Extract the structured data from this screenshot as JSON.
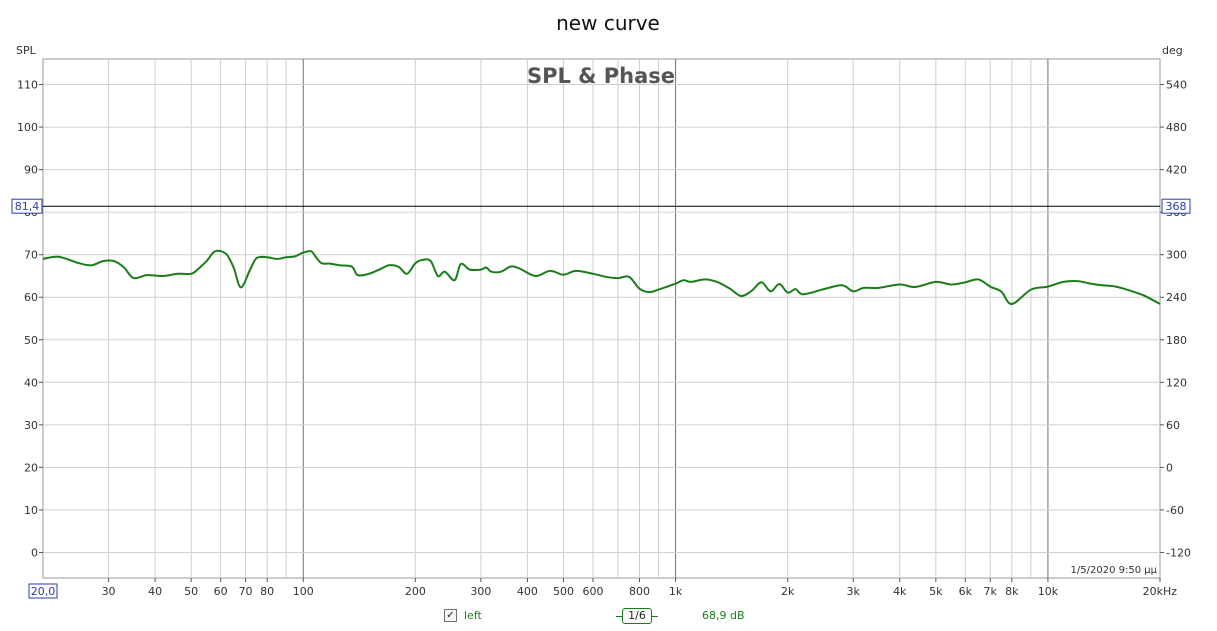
{
  "window_title": "new curve",
  "chart_data": {
    "type": "line",
    "title": "SPL & Phase",
    "left_axis_label": "SPL",
    "right_axis_label": "deg",
    "x_scale": "log",
    "xlim": [
      20,
      20000
    ],
    "ylim": [
      -6,
      116
    ],
    "right_ylim": [
      -156,
      576
    ],
    "y_ticks": [
      0,
      10,
      20,
      30,
      40,
      50,
      60,
      70,
      80,
      90,
      100,
      110
    ],
    "right_ticks": [
      -120,
      -60,
      0,
      60,
      120,
      180,
      240,
      300,
      360,
      420,
      480,
      540
    ],
    "x_ticks": [
      {
        "v": 30,
        "label": "30"
      },
      {
        "v": 40,
        "label": "40"
      },
      {
        "v": 50,
        "label": "50"
      },
      {
        "v": 60,
        "label": "60"
      },
      {
        "v": 70,
        "label": "70"
      },
      {
        "v": 80,
        "label": "80"
      },
      {
        "v": 100,
        "label": "100"
      },
      {
        "v": 200,
        "label": "200"
      },
      {
        "v": 300,
        "label": "300"
      },
      {
        "v": 400,
        "label": "400"
      },
      {
        "v": 500,
        "label": "500"
      },
      {
        "v": 600,
        "label": "600"
      },
      {
        "v": 800,
        "label": "800"
      },
      {
        "v": 1000,
        "label": "1k"
      },
      {
        "v": 2000,
        "label": "2k"
      },
      {
        "v": 3000,
        "label": "3k"
      },
      {
        "v": 4000,
        "label": "4k"
      },
      {
        "v": 5000,
        "label": "5k"
      },
      {
        "v": 6000,
        "label": "6k"
      },
      {
        "v": 7000,
        "label": "7k"
      },
      {
        "v": 8000,
        "label": "8k"
      },
      {
        "v": 10000,
        "label": "10k"
      },
      {
        "v": 20000,
        "label": "20kHz"
      }
    ],
    "x_start_label": "20,0",
    "cursor": {
      "y": 81.4,
      "y_label": "81,4",
      "right_label": "368"
    },
    "timestamp": "1/5/2020 9:50 μμ",
    "grid": true,
    "series": [
      {
        "name": "left",
        "color": "#1a7d1a",
        "x": [
          20,
          22,
          25,
          27,
          29,
          31,
          33,
          35,
          38,
          42,
          46,
          50,
          52,
          55,
          58,
          62,
          65,
          68,
          72,
          75,
          80,
          85,
          90,
          95,
          100,
          105,
          108,
          112,
          118,
          125,
          135,
          140,
          150,
          160,
          170,
          180,
          190,
          200,
          210,
          220,
          230,
          240,
          255,
          265,
          280,
          300,
          310,
          320,
          340,
          360,
          380,
          420,
          460,
          500,
          540,
          600,
          650,
          700,
          750,
          800,
          850,
          900,
          1000,
          1050,
          1100,
          1200,
          1300,
          1400,
          1500,
          1600,
          1700,
          1800,
          1900,
          2000,
          2100,
          2200,
          2500,
          2800,
          3000,
          3200,
          3500,
          4000,
          4400,
          5000,
          5500,
          6000,
          6500,
          7000,
          7500,
          8000,
          9000,
          10000,
          11000,
          12000,
          13000,
          14000,
          15000,
          16000,
          18000,
          20000
        ],
        "y": [
          69,
          69.5,
          68,
          67.5,
          68.5,
          68.5,
          67,
          64.5,
          65.2,
          65,
          65.5,
          65.5,
          66.5,
          68.5,
          70.8,
          70.2,
          67,
          62.3,
          66.5,
          69.2,
          69.4,
          69,
          69.4,
          69.6,
          70.5,
          70.8,
          69.5,
          68,
          67.9,
          67.5,
          67.2,
          65.2,
          65.5,
          66.5,
          67.5,
          67.2,
          65.5,
          68,
          68.8,
          68.5,
          65,
          66,
          64,
          67.8,
          66.5,
          66.5,
          67,
          66,
          66,
          67.2,
          66.8,
          65,
          66.2,
          65.3,
          66.2,
          65.5,
          64.8,
          64.5,
          64.8,
          62,
          61.2,
          61.8,
          63.2,
          64,
          63.6,
          64.2,
          63.5,
          62,
          60.3,
          61.5,
          63.5,
          61.4,
          63.1,
          61.1,
          61.9,
          60.7,
          61.9,
          62.8,
          61.4,
          62.2,
          62.2,
          63,
          62.4,
          63.6,
          63,
          63.5,
          64.2,
          62.5,
          61.3,
          58.4,
          61.8,
          62.5,
          63.6,
          63.8,
          63.2,
          62.8,
          62.6,
          62,
          60.5,
          58.4
        ]
      }
    ]
  },
  "legend": {
    "checked": true,
    "series_label": "left",
    "smoothing_label": "1/6",
    "cursor_value": "68,9 dB"
  }
}
